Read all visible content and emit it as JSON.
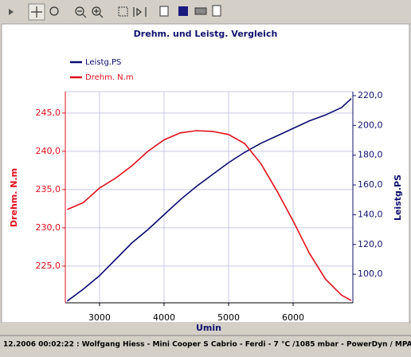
{
  "chart_data": {
    "type": "line",
    "title": "Drehm. und Leistg. Vergleich",
    "x_label": "Umin",
    "y_label": "Drehm. N.m",
    "y2_label": "Leistg.PS",
    "x": [
      2500,
      2750,
      3000,
      3250,
      3500,
      3750,
      4000,
      4250,
      4500,
      4750,
      5000,
      5250,
      5500,
      5750,
      6000,
      6250,
      6500,
      6750,
      6900
    ],
    "series": [
      {
        "name": "Leistg.PS",
        "color": "#0b0b6e",
        "axis": "y2",
        "values": [
          82,
          90,
          99,
          110,
          121,
          130,
          140,
          150,
          159,
          167,
          175,
          182,
          188,
          193,
          198,
          203,
          207,
          212,
          218
        ]
      },
      {
        "name": "Drehm. N.m",
        "color": "#e0101c",
        "values": [
          232.4,
          233.3,
          235.2,
          236.5,
          238.1,
          240.0,
          241.5,
          242.4,
          242.7,
          242.6,
          242.2,
          241.0,
          238.4,
          234.8,
          230.9,
          226.7,
          223.3,
          221.2,
          220.5
        ]
      }
    ],
    "xlim": [
      2470,
      6925
    ],
    "xticks": [
      3000,
      4000,
      5000,
      6000
    ],
    "ylim": [
      220.2,
      247.8
    ],
    "yticks": [
      {
        "value": 225,
        "label": "225,0"
      },
      {
        "value": 230,
        "label": "230,0"
      },
      {
        "value": 235,
        "label": "235,0"
      },
      {
        "value": 240,
        "label": "240,0"
      },
      {
        "value": 245,
        "label": "245,0"
      }
    ],
    "y2lim": [
      80.8,
      222.7
    ],
    "y2ticks": [
      {
        "value": 100,
        "label": "100,0"
      },
      {
        "value": 120,
        "label": "120,0"
      },
      {
        "value": 140,
        "label": "140,0"
      },
      {
        "value": 160,
        "label": "160,0"
      },
      {
        "value": 180,
        "label": "180,0"
      },
      {
        "value": 200,
        "label": "200,0"
      },
      {
        "value": 220,
        "label": "220,0"
      }
    ],
    "grid": true,
    "legend": "top-left"
  },
  "status_text": "12.2006 00:02:22 : Wolfgang Hiess - Mini Cooper S Cabrio - Ferdi - 7 °C /1085 mbar - PowerDyn / MPA"
}
